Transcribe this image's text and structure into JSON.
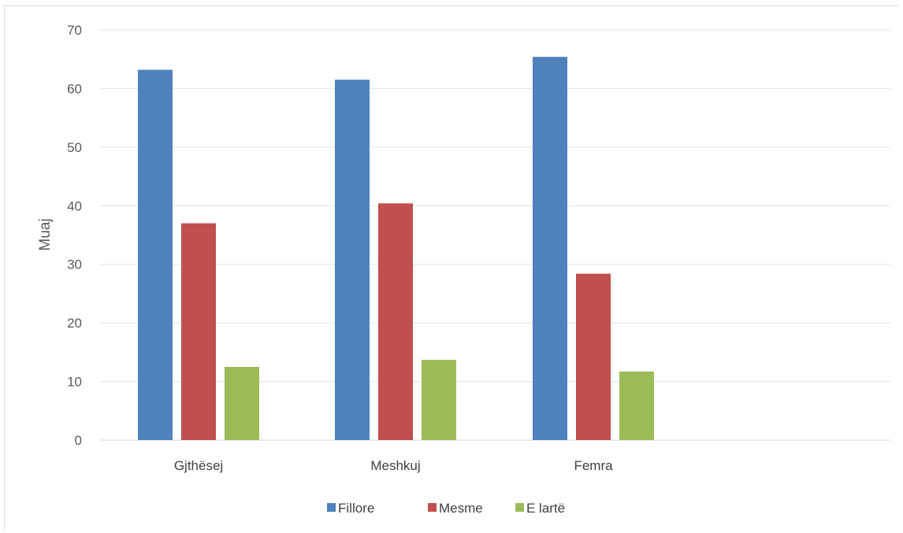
{
  "chart_data": {
    "type": "bar",
    "title": "",
    "xlabel": "",
    "ylabel": "Muaj",
    "ylim": [
      0,
      70
    ],
    "yticks": [
      0,
      10,
      20,
      30,
      40,
      50,
      60,
      70
    ],
    "grid": true,
    "legend_position": "bottom",
    "categories": [
      "Gjthësej",
      "Meshkuj",
      "Femra"
    ],
    "series": [
      {
        "name": "Fillore",
        "color": "#4f81bd",
        "values": [
          63.2,
          61.5,
          65.4
        ]
      },
      {
        "name": "Mesme",
        "color": "#c0504d",
        "values": [
          37.0,
          40.4,
          28.4
        ]
      },
      {
        "name": "E lartë",
        "color": "#9bbb59",
        "values": [
          12.5,
          13.7,
          11.7
        ]
      }
    ]
  }
}
